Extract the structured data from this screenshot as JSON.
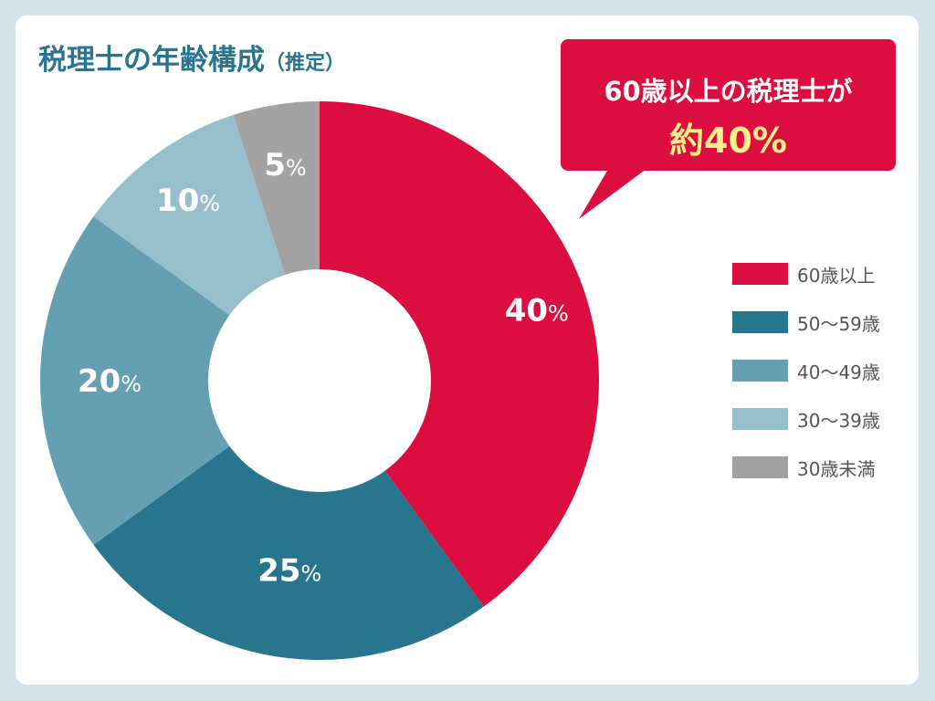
{
  "title": {
    "main": "税理士の年齢構成",
    "sub": "（推定）"
  },
  "callout": {
    "line1": "60歳以上の税理士が",
    "line2": "約40%",
    "bg_color": "#dc0e3f",
    "highlight_color": "#fdf08a"
  },
  "legend": {
    "items": [
      {
        "label": "60歳以上",
        "color": "#dc0e3f"
      },
      {
        "label": "50〜59歳",
        "color": "#27768e"
      },
      {
        "label": "40〜49歳",
        "color": "#64a0b2"
      },
      {
        "label": "30〜39歳",
        "color": "#97bfcb"
      },
      {
        "label": "30歳未満",
        "color": "#a2a2a2"
      }
    ]
  },
  "slice_labels": [
    {
      "num": "40",
      "pct": "%"
    },
    {
      "num": "25",
      "pct": "%"
    },
    {
      "num": "20",
      "pct": "%"
    },
    {
      "num": "10",
      "pct": "%"
    },
    {
      "num": "5",
      "pct": "%"
    }
  ],
  "chart_data": {
    "type": "pie",
    "subtype": "donut",
    "title": "税理士の年齢構成（推定）",
    "categories": [
      "60歳以上",
      "50〜59歳",
      "40〜49歳",
      "30〜39歳",
      "30歳未満"
    ],
    "values": [
      40,
      25,
      20,
      10,
      5
    ],
    "unit": "%",
    "colors": [
      "#dc0e3f",
      "#27768e",
      "#64a0b2",
      "#97bfcb",
      "#a2a2a2"
    ],
    "start_angle": "12 o'clock, clockwise",
    "legend_position": "right",
    "annotation": "60歳以上の税理士が 約40%"
  }
}
